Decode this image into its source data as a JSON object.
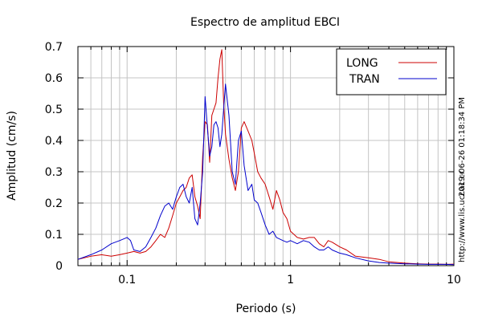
{
  "chart_data": {
    "type": "line",
    "title": "Espectro de amplitud EBCI",
    "xlabel": "Periodo (s)",
    "ylabel": "Amplitud (cm/s)",
    "x_scale": "log",
    "xlim": [
      0.05,
      10
    ],
    "ylim": [
      0,
      0.7
    ],
    "x_tick_labels": [
      "0.1",
      "1",
      "10"
    ],
    "y_tick_labels": [
      "0",
      "0.1",
      "0.2",
      "0.3",
      "0.4",
      "0.5",
      "0.6",
      "0.7"
    ],
    "grid": true,
    "legend_position": "top-right",
    "series": [
      {
        "name": "LONG",
        "color": "#cc0000",
        "x": [
          0.05,
          0.06,
          0.07,
          0.08,
          0.09,
          0.1,
          0.11,
          0.12,
          0.13,
          0.14,
          0.15,
          0.16,
          0.17,
          0.18,
          0.19,
          0.2,
          0.21,
          0.22,
          0.23,
          0.24,
          0.25,
          0.26,
          0.27,
          0.28,
          0.29,
          0.3,
          0.31,
          0.32,
          0.33,
          0.34,
          0.35,
          0.36,
          0.37,
          0.38,
          0.39,
          0.4,
          0.42,
          0.44,
          0.46,
          0.48,
          0.5,
          0.52,
          0.55,
          0.58,
          0.6,
          0.63,
          0.66,
          0.7,
          0.74,
          0.78,
          0.82,
          0.86,
          0.9,
          0.95,
          1.0,
          1.1,
          1.2,
          1.3,
          1.4,
          1.5,
          1.6,
          1.7,
          1.8,
          2.0,
          2.2,
          2.5,
          3.0,
          3.5,
          4.0,
          5.0,
          6.0,
          7.0,
          8.0,
          9.0,
          10.0
        ],
        "y": [
          0.02,
          0.03,
          0.035,
          0.03,
          0.035,
          0.04,
          0.045,
          0.04,
          0.045,
          0.06,
          0.08,
          0.1,
          0.09,
          0.12,
          0.16,
          0.2,
          0.22,
          0.24,
          0.25,
          0.28,
          0.29,
          0.22,
          0.19,
          0.15,
          0.35,
          0.46,
          0.45,
          0.33,
          0.48,
          0.5,
          0.52,
          0.6,
          0.66,
          0.69,
          0.52,
          0.42,
          0.34,
          0.28,
          0.24,
          0.3,
          0.44,
          0.46,
          0.43,
          0.4,
          0.36,
          0.3,
          0.28,
          0.26,
          0.22,
          0.18,
          0.24,
          0.21,
          0.17,
          0.15,
          0.11,
          0.09,
          0.085,
          0.09,
          0.09,
          0.07,
          0.06,
          0.08,
          0.075,
          0.06,
          0.05,
          0.03,
          0.025,
          0.02,
          0.012,
          0.008,
          0.006,
          0.005,
          0.005,
          0.004,
          0.005
        ]
      },
      {
        "name": "TRAN",
        "color": "#0000cc",
        "x": [
          0.05,
          0.06,
          0.07,
          0.08,
          0.09,
          0.1,
          0.105,
          0.11,
          0.12,
          0.13,
          0.14,
          0.15,
          0.16,
          0.17,
          0.18,
          0.19,
          0.2,
          0.21,
          0.22,
          0.23,
          0.24,
          0.25,
          0.26,
          0.27,
          0.28,
          0.29,
          0.3,
          0.31,
          0.32,
          0.33,
          0.34,
          0.35,
          0.36,
          0.37,
          0.38,
          0.39,
          0.4,
          0.42,
          0.44,
          0.46,
          0.48,
          0.5,
          0.52,
          0.55,
          0.58,
          0.6,
          0.63,
          0.66,
          0.7,
          0.74,
          0.78,
          0.82,
          0.86,
          0.9,
          0.95,
          1.0,
          1.1,
          1.2,
          1.3,
          1.4,
          1.5,
          1.6,
          1.7,
          1.8,
          2.0,
          2.2,
          2.5,
          3.0,
          3.5,
          4.0,
          5.0,
          6.0,
          7.0,
          8.0,
          9.0,
          10.0
        ],
        "y": [
          0.02,
          0.035,
          0.05,
          0.07,
          0.08,
          0.09,
          0.08,
          0.05,
          0.045,
          0.06,
          0.09,
          0.12,
          0.16,
          0.19,
          0.2,
          0.18,
          0.22,
          0.25,
          0.26,
          0.22,
          0.2,
          0.25,
          0.15,
          0.13,
          0.2,
          0.3,
          0.54,
          0.44,
          0.35,
          0.38,
          0.45,
          0.46,
          0.44,
          0.38,
          0.42,
          0.5,
          0.58,
          0.48,
          0.3,
          0.26,
          0.4,
          0.43,
          0.32,
          0.24,
          0.26,
          0.21,
          0.2,
          0.17,
          0.13,
          0.1,
          0.11,
          0.09,
          0.085,
          0.08,
          0.075,
          0.08,
          0.07,
          0.08,
          0.075,
          0.06,
          0.05,
          0.05,
          0.06,
          0.05,
          0.04,
          0.035,
          0.025,
          0.015,
          0.01,
          0.008,
          0.006,
          0.005,
          0.004,
          0.004,
          0.004,
          0.003
        ]
      }
    ]
  },
  "side_text": {
    "timestamp": "2019-06-26 01:18:34 PM",
    "url": "http://www.lis.ucr.ac.cr"
  }
}
